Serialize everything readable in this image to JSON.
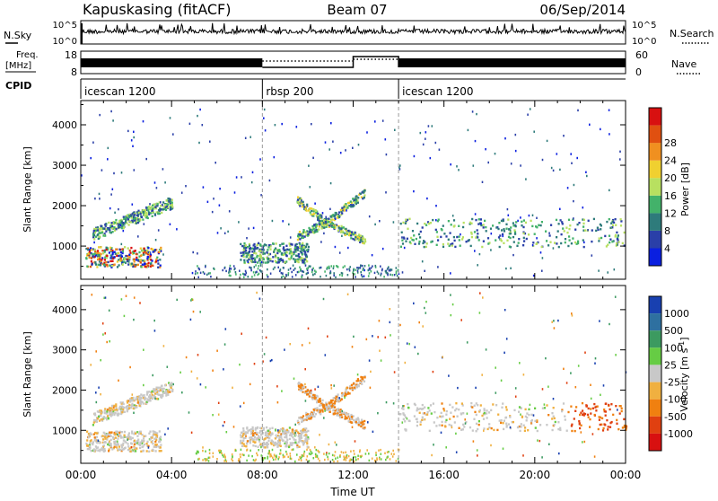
{
  "header": {
    "station": "Kapuskasing (fitACF)",
    "beam": "Beam 07",
    "date": "06/Sep/2014"
  },
  "noise_panel": {
    "left_label": "N.Sky",
    "right_label": "N.Search",
    "left_ticks": [
      "10^5",
      "10^0"
    ],
    "right_ticks": [
      "10^5",
      "10^0"
    ]
  },
  "freq_panel": {
    "left_label_line1": "Freq.",
    "left_label_line2": "[MHz]",
    "right_label": "Nave",
    "left_ticks": [
      "18",
      "8"
    ],
    "right_ticks": [
      "60",
      "0"
    ]
  },
  "cpid_panel": {
    "label": "CPID",
    "segments": [
      {
        "name": "icescan 1200",
        "start": 0,
        "end": 8
      },
      {
        "name": "rbsp 200",
        "start": 8,
        "end": 14
      },
      {
        "name": "icescan 1200",
        "start": 14,
        "end": 24
      }
    ]
  },
  "chart_data": [
    {
      "type": "heatmap",
      "name": "power",
      "ylabel": "Slant Range [km]",
      "xlabel": "",
      "x_range_hours": [
        0,
        24
      ],
      "ylim": [
        180,
        4600
      ],
      "yticks": [
        1000,
        2000,
        3000,
        4000
      ],
      "colorbar": {
        "label": "Power [dB]",
        "ticks": [
          "4",
          "8",
          "12",
          "16",
          "20",
          "24",
          "28"
        ],
        "colors": [
          "#0a1fe0",
          "#2a3fa8",
          "#2e7b7b",
          "#43b26a",
          "#b8e060",
          "#f0d030",
          "#f09020",
          "#e05010",
          "#d81010"
        ]
      },
      "features": [
        {
          "label": "ionospheric scatter 00-03 UT",
          "t_start": 0.2,
          "t_end": 3.5,
          "r_start": 500,
          "r_end": 1000
        },
        {
          "label": "rising echo band 00-04 UT",
          "t_start": 0.5,
          "t_end": 4.0,
          "r_start": 1300,
          "r_end": 2200
        },
        {
          "label": "echo 07-10 UT",
          "t_start": 7.0,
          "t_end": 10.0,
          "r_start": 600,
          "r_end": 1100
        },
        {
          "label": "arc echo 10-12 UT",
          "t_start": 9.5,
          "t_end": 12.5,
          "r_start": 1000,
          "r_end": 2500
        },
        {
          "label": "echo band 14-24 UT",
          "t_start": 14.0,
          "t_end": 24.0,
          "r_start": 1000,
          "r_end": 1700
        }
      ]
    },
    {
      "type": "heatmap",
      "name": "velocity",
      "ylabel": "Slant Range [km]",
      "xlabel": "Time UT",
      "x_range_hours": [
        0,
        24
      ],
      "xticks": [
        "00:00",
        "04:00",
        "08:00",
        "12:00",
        "16:00",
        "20:00",
        "00:00"
      ],
      "ylim": [
        180,
        4600
      ],
      "yticks": [
        1000,
        2000,
        3000,
        4000
      ],
      "colorbar": {
        "label": "Velocity [m s^-1]",
        "ticks": [
          "1000",
          "500",
          "100",
          "25",
          "-25",
          "-100",
          "-500",
          "-1000"
        ],
        "colors": [
          "#1840b0",
          "#2e70a0",
          "#3c9a60",
          "#66cc44",
          "#c8c8c8",
          "#f0b040",
          "#f08010",
          "#e04010",
          "#d81010"
        ]
      }
    }
  ]
}
